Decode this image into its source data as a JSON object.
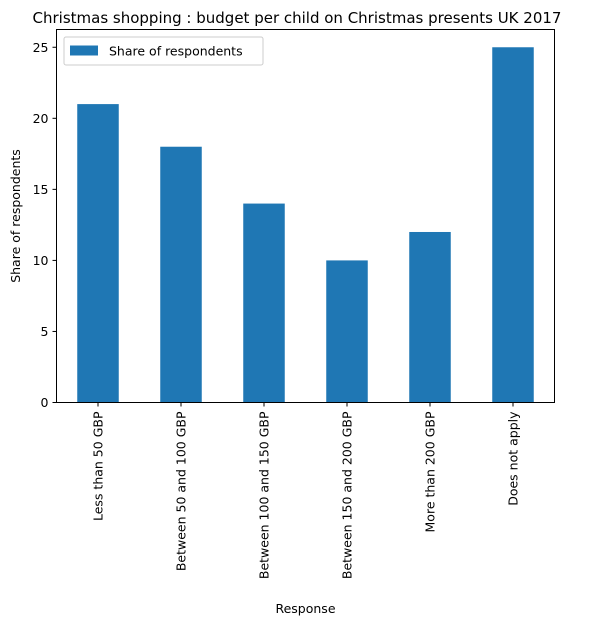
{
  "chart_data": {
    "type": "bar",
    "title": "Christmas shopping : budget per child on Christmas presents UK 2017",
    "xlabel": "Response",
    "ylabel": "Share of respondents",
    "categories": [
      "Less than 50 GBP",
      "Between 50 and 100 GBP",
      "Between 100 and 150 GBP",
      "Between 150 and 200 GBP",
      "More than 200 GBP",
      "Does not apply"
    ],
    "series": [
      {
        "name": "Share of respondents",
        "values": [
          21,
          18,
          14,
          10,
          12,
          25
        ],
        "color": "#1f77b4"
      }
    ],
    "ylim": [
      0,
      26.25
    ],
    "yticks": [
      0,
      5,
      10,
      15,
      20,
      25
    ],
    "legend": "top-left",
    "grid": false
  }
}
